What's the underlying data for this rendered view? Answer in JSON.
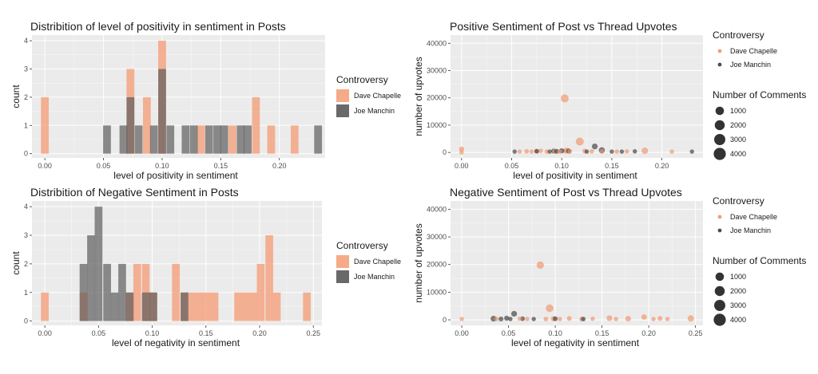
{
  "colors": {
    "dave": "#F4A582",
    "joe": "#595959",
    "dave_point": "#F0946A",
    "joe_point": "#3A3A3A",
    "panel": "#EBEBEB",
    "grid": "#FFFFFF",
    "text": "#1A1A1A",
    "tick_text": "#4D4D4D"
  },
  "chart_data": [
    {
      "type": "bar",
      "title": "Distribition of level of positivity in sentiment in Posts",
      "xlabel": "level of positivity in sentiment",
      "ylabel": "count",
      "xlim": [
        -0.011,
        0.239
      ],
      "ylim": [
        -0.15,
        4.2
      ],
      "xticks": [
        0.0,
        0.05,
        0.1,
        0.15,
        0.2
      ],
      "xtick_labels": [
        "0.00",
        "0.05",
        "0.10",
        "0.15",
        "0.20"
      ],
      "yticks": [
        0,
        1,
        2,
        3,
        4
      ],
      "ytick_labels": [
        "0",
        "1",
        "2",
        "3",
        "4"
      ],
      "bin_width": 0.00665,
      "legend": {
        "title": "Controversy",
        "position": "right",
        "entries": [
          {
            "name": "Dave Chapelle",
            "color": "#F4A582"
          },
          {
            "name": "Joe Manchin",
            "color": "#595959"
          }
        ]
      },
      "series": [
        {
          "name": "Dave Chapelle",
          "color": "#F4A582",
          "bins": [
            [
              0.0,
              2
            ],
            [
              0.073,
              3
            ],
            [
              0.087,
              2
            ],
            [
              0.1,
              4
            ],
            [
              0.133,
              1
            ],
            [
              0.16,
              1
            ],
            [
              0.18,
              2
            ],
            [
              0.193,
              1
            ],
            [
              0.213,
              1
            ]
          ]
        },
        {
          "name": "Joe Manchin",
          "color": "#595959",
          "bins": [
            [
              0.053,
              1
            ],
            [
              0.067,
              1
            ],
            [
              0.073,
              2
            ],
            [
              0.08,
              1
            ],
            [
              0.093,
              1
            ],
            [
              0.1,
              3
            ],
            [
              0.107,
              1
            ],
            [
              0.12,
              1
            ],
            [
              0.127,
              1
            ],
            [
              0.14,
              1
            ],
            [
              0.147,
              1
            ],
            [
              0.153,
              1
            ],
            [
              0.167,
              1
            ],
            [
              0.173,
              1
            ],
            [
              0.233,
              1
            ]
          ]
        }
      ]
    },
    {
      "type": "bar",
      "title": "Distribition of Negative Sentiment in Posts",
      "xlabel": "level of negativity in sentiment",
      "ylabel": "count",
      "xlim": [
        -0.012,
        0.258
      ],
      "ylim": [
        -0.15,
        4.2
      ],
      "xticks": [
        0.0,
        0.05,
        0.1,
        0.15,
        0.2,
        0.25
      ],
      "xtick_labels": [
        "0.00",
        "0.05",
        "0.10",
        "0.15",
        "0.20",
        "0.25"
      ],
      "yticks": [
        0,
        1,
        2,
        3,
        4
      ],
      "ytick_labels": [
        "0",
        "1",
        "2",
        "3",
        "4"
      ],
      "bin_width": 0.0072,
      "legend": {
        "title": "Controversy",
        "position": "right",
        "entries": [
          {
            "name": "Dave Chapelle",
            "color": "#F4A582"
          },
          {
            "name": "Joe Manchin",
            "color": "#595959"
          }
        ]
      },
      "series": [
        {
          "name": "Dave Chapelle",
          "color": "#F4A582",
          "bins": [
            [
              0.0,
              1
            ],
            [
              0.036,
              1
            ],
            [
              0.079,
              1
            ],
            [
              0.086,
              2
            ],
            [
              0.094,
              2
            ],
            [
              0.101,
              1
            ],
            [
              0.122,
              2
            ],
            [
              0.13,
              1
            ],
            [
              0.137,
              1
            ],
            [
              0.144,
              1
            ],
            [
              0.151,
              1
            ],
            [
              0.158,
              1
            ],
            [
              0.18,
              1
            ],
            [
              0.187,
              1
            ],
            [
              0.194,
              1
            ],
            [
              0.201,
              2
            ],
            [
              0.209,
              3
            ],
            [
              0.216,
              1
            ],
            [
              0.244,
              1
            ]
          ]
        },
        {
          "name": "Joe Manchin",
          "color": "#595959",
          "bins": [
            [
              0.036,
              2
            ],
            [
              0.043,
              3
            ],
            [
              0.05,
              4
            ],
            [
              0.058,
              2
            ],
            [
              0.065,
              1
            ],
            [
              0.072,
              2
            ],
            [
              0.079,
              1
            ],
            [
              0.094,
              1
            ],
            [
              0.101,
              1
            ],
            [
              0.13,
              1
            ]
          ]
        }
      ]
    },
    {
      "type": "scatter",
      "title": "Positive Sentiment of Post vs Thread Upvotes",
      "xlabel": "level of positivity in sentiment",
      "ylabel": "number of upvotes",
      "xlim": [
        -0.011,
        0.241
      ],
      "ylim": [
        -2000,
        43000
      ],
      "xticks": [
        0.0,
        0.05,
        0.1,
        0.15,
        0.2
      ],
      "xtick_labels": [
        "0.00",
        "0.05",
        "0.10",
        "0.15",
        "0.20"
      ],
      "yticks": [
        0,
        10000,
        20000,
        30000,
        40000
      ],
      "ytick_labels": [
        "0",
        "10000",
        "20000",
        "30000",
        "40000"
      ],
      "legend": {
        "title": "Controversy",
        "entries": [
          {
            "name": "Dave Chapelle",
            "color": "#F0946A"
          },
          {
            "name": "Joe Manchin",
            "color": "#3A3A3A"
          }
        ],
        "size_title": "Number of Comments",
        "size_entries": [
          1000,
          2000,
          3000,
          4000
        ]
      },
      "series": [
        {
          "name": "Dave Chapelle",
          "color": "#F0946A",
          "points": [
            [
              0.0,
              1200,
              300
            ],
            [
              0.0,
              0,
              100
            ],
            [
              0.058,
              300,
              100
            ],
            [
              0.065,
              400,
              150
            ],
            [
              0.07,
              300,
              100
            ],
            [
              0.075,
              500,
              200
            ],
            [
              0.079,
              600,
              150
            ],
            [
              0.085,
              300,
              100
            ],
            [
              0.093,
              400,
              200
            ],
            [
              0.098,
              300,
              100
            ],
            [
              0.103,
              19800,
              1700
            ],
            [
              0.104,
              500,
              300
            ],
            [
              0.105,
              800,
              400
            ],
            [
              0.108,
              400,
              150
            ],
            [
              0.118,
              4000,
              1700
            ],
            [
              0.123,
              500,
              200
            ],
            [
              0.13,
              400,
              100
            ],
            [
              0.14,
              400,
              150
            ],
            [
              0.155,
              300,
              100
            ],
            [
              0.165,
              400,
              100
            ],
            [
              0.183,
              600,
              800
            ],
            [
              0.21,
              300,
              100
            ]
          ]
        },
        {
          "name": "Joe Manchin",
          "color": "#3A3A3A",
          "points": [
            [
              0.053,
              300,
              100
            ],
            [
              0.075,
              400,
              150
            ],
            [
              0.088,
              300,
              100
            ],
            [
              0.092,
              500,
              250
            ],
            [
              0.095,
              400,
              200
            ],
            [
              0.1,
              600,
              300
            ],
            [
              0.107,
              500,
              250
            ],
            [
              0.125,
              300,
              100
            ],
            [
              0.133,
              2200,
              500
            ],
            [
              0.14,
              800,
              600
            ],
            [
              0.15,
              300,
              100
            ],
            [
              0.16,
              300,
              100
            ],
            [
              0.173,
              400,
              100
            ],
            [
              0.23,
              300,
              100
            ]
          ]
        }
      ]
    },
    {
      "type": "scatter",
      "title": "Negative Sentiment of Post vs Thread Upvotes",
      "xlabel": "level of negativity in sentiment",
      "ylabel": "number of upvotes",
      "xlim": [
        -0.012,
        0.258
      ],
      "ylim": [
        -2000,
        43000
      ],
      "xticks": [
        0.0,
        0.05,
        0.1,
        0.15,
        0.2,
        0.25
      ],
      "xtick_labels": [
        "0.00",
        "0.05",
        "0.10",
        "0.15",
        "0.20",
        "0.25"
      ],
      "yticks": [
        0,
        10000,
        20000,
        30000,
        40000
      ],
      "ytick_labels": [
        "0",
        "10000",
        "20000",
        "30000",
        "40000"
      ],
      "legend": {
        "title": "Controversy",
        "entries": [
          {
            "name": "Dave Chapelle",
            "color": "#F0946A"
          },
          {
            "name": "Joe Manchin",
            "color": "#3A3A3A"
          }
        ],
        "size_title": "Number of Comments",
        "size_entries": [
          1000,
          2000,
          3000,
          4000
        ]
      },
      "series": [
        {
          "name": "Dave Chapelle",
          "color": "#F0946A",
          "points": [
            [
              0.0,
              300,
              100
            ],
            [
              0.037,
              300,
              150
            ],
            [
              0.062,
              400,
              100
            ],
            [
              0.07,
              300,
              100
            ],
            [
              0.084,
              19800,
              1300
            ],
            [
              0.09,
              300,
              150
            ],
            [
              0.094,
              4200,
              1500
            ],
            [
              0.098,
              400,
              300
            ],
            [
              0.105,
              300,
              100
            ],
            [
              0.115,
              500,
              200
            ],
            [
              0.128,
              300,
              150
            ],
            [
              0.14,
              400,
              100
            ],
            [
              0.158,
              600,
              500
            ],
            [
              0.165,
              300,
              100
            ],
            [
              0.178,
              400,
              450
            ],
            [
              0.195,
              1000,
              400
            ],
            [
              0.205,
              300,
              100
            ],
            [
              0.212,
              500,
              200
            ],
            [
              0.22,
              300,
              100
            ],
            [
              0.245,
              500,
              700
            ]
          ]
        },
        {
          "name": "Joe Manchin",
          "color": "#3A3A3A",
          "points": [
            [
              0.034,
              400,
              500
            ],
            [
              0.042,
              300,
              200
            ],
            [
              0.048,
              600,
              250
            ],
            [
              0.052,
              300,
              100
            ],
            [
              0.056,
              2200,
              500
            ],
            [
              0.065,
              400,
              150
            ],
            [
              0.077,
              300,
              100
            ],
            [
              0.1,
              400,
              200
            ],
            [
              0.13,
              300,
              150
            ]
          ]
        }
      ]
    }
  ]
}
